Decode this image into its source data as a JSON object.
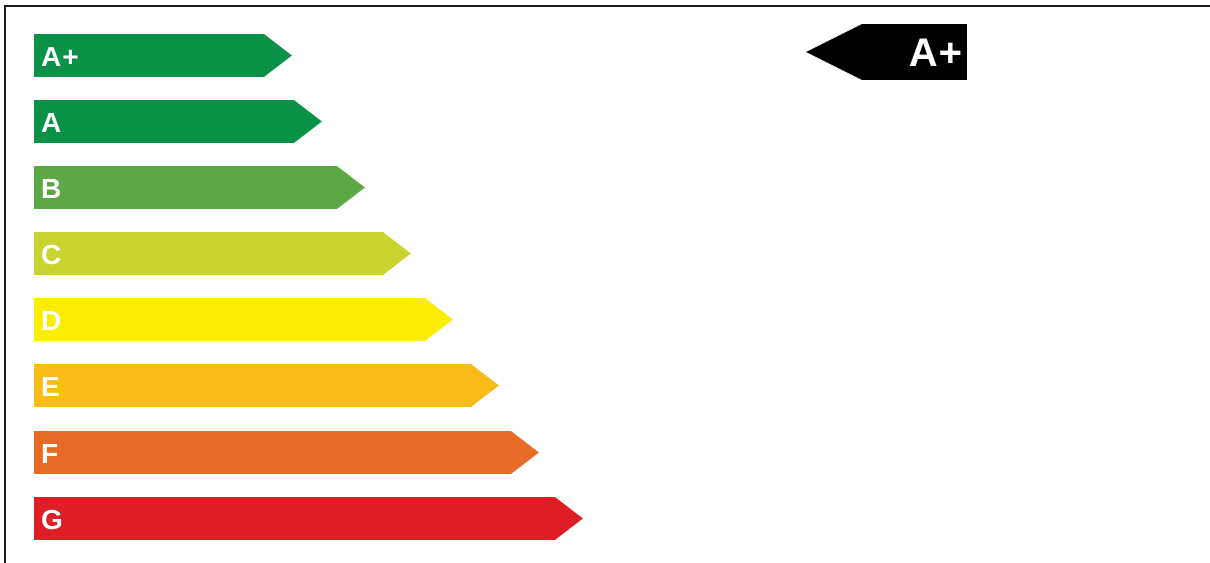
{
  "classes": [
    {
      "label": "A+",
      "color": "#0a9148"
    },
    {
      "label": "A",
      "color": "#0a9148"
    },
    {
      "label": "B",
      "color": "#5ba845"
    },
    {
      "label": "C",
      "color": "#c9d42f"
    },
    {
      "label": "D",
      "color": "#fded05"
    },
    {
      "label": "E",
      "color": "#f8bb17"
    },
    {
      "label": "F",
      "color": "#e76b25"
    },
    {
      "label": "G",
      "color": "#df1d24"
    }
  ],
  "rating": {
    "label": "A+",
    "color": "#000000"
  }
}
